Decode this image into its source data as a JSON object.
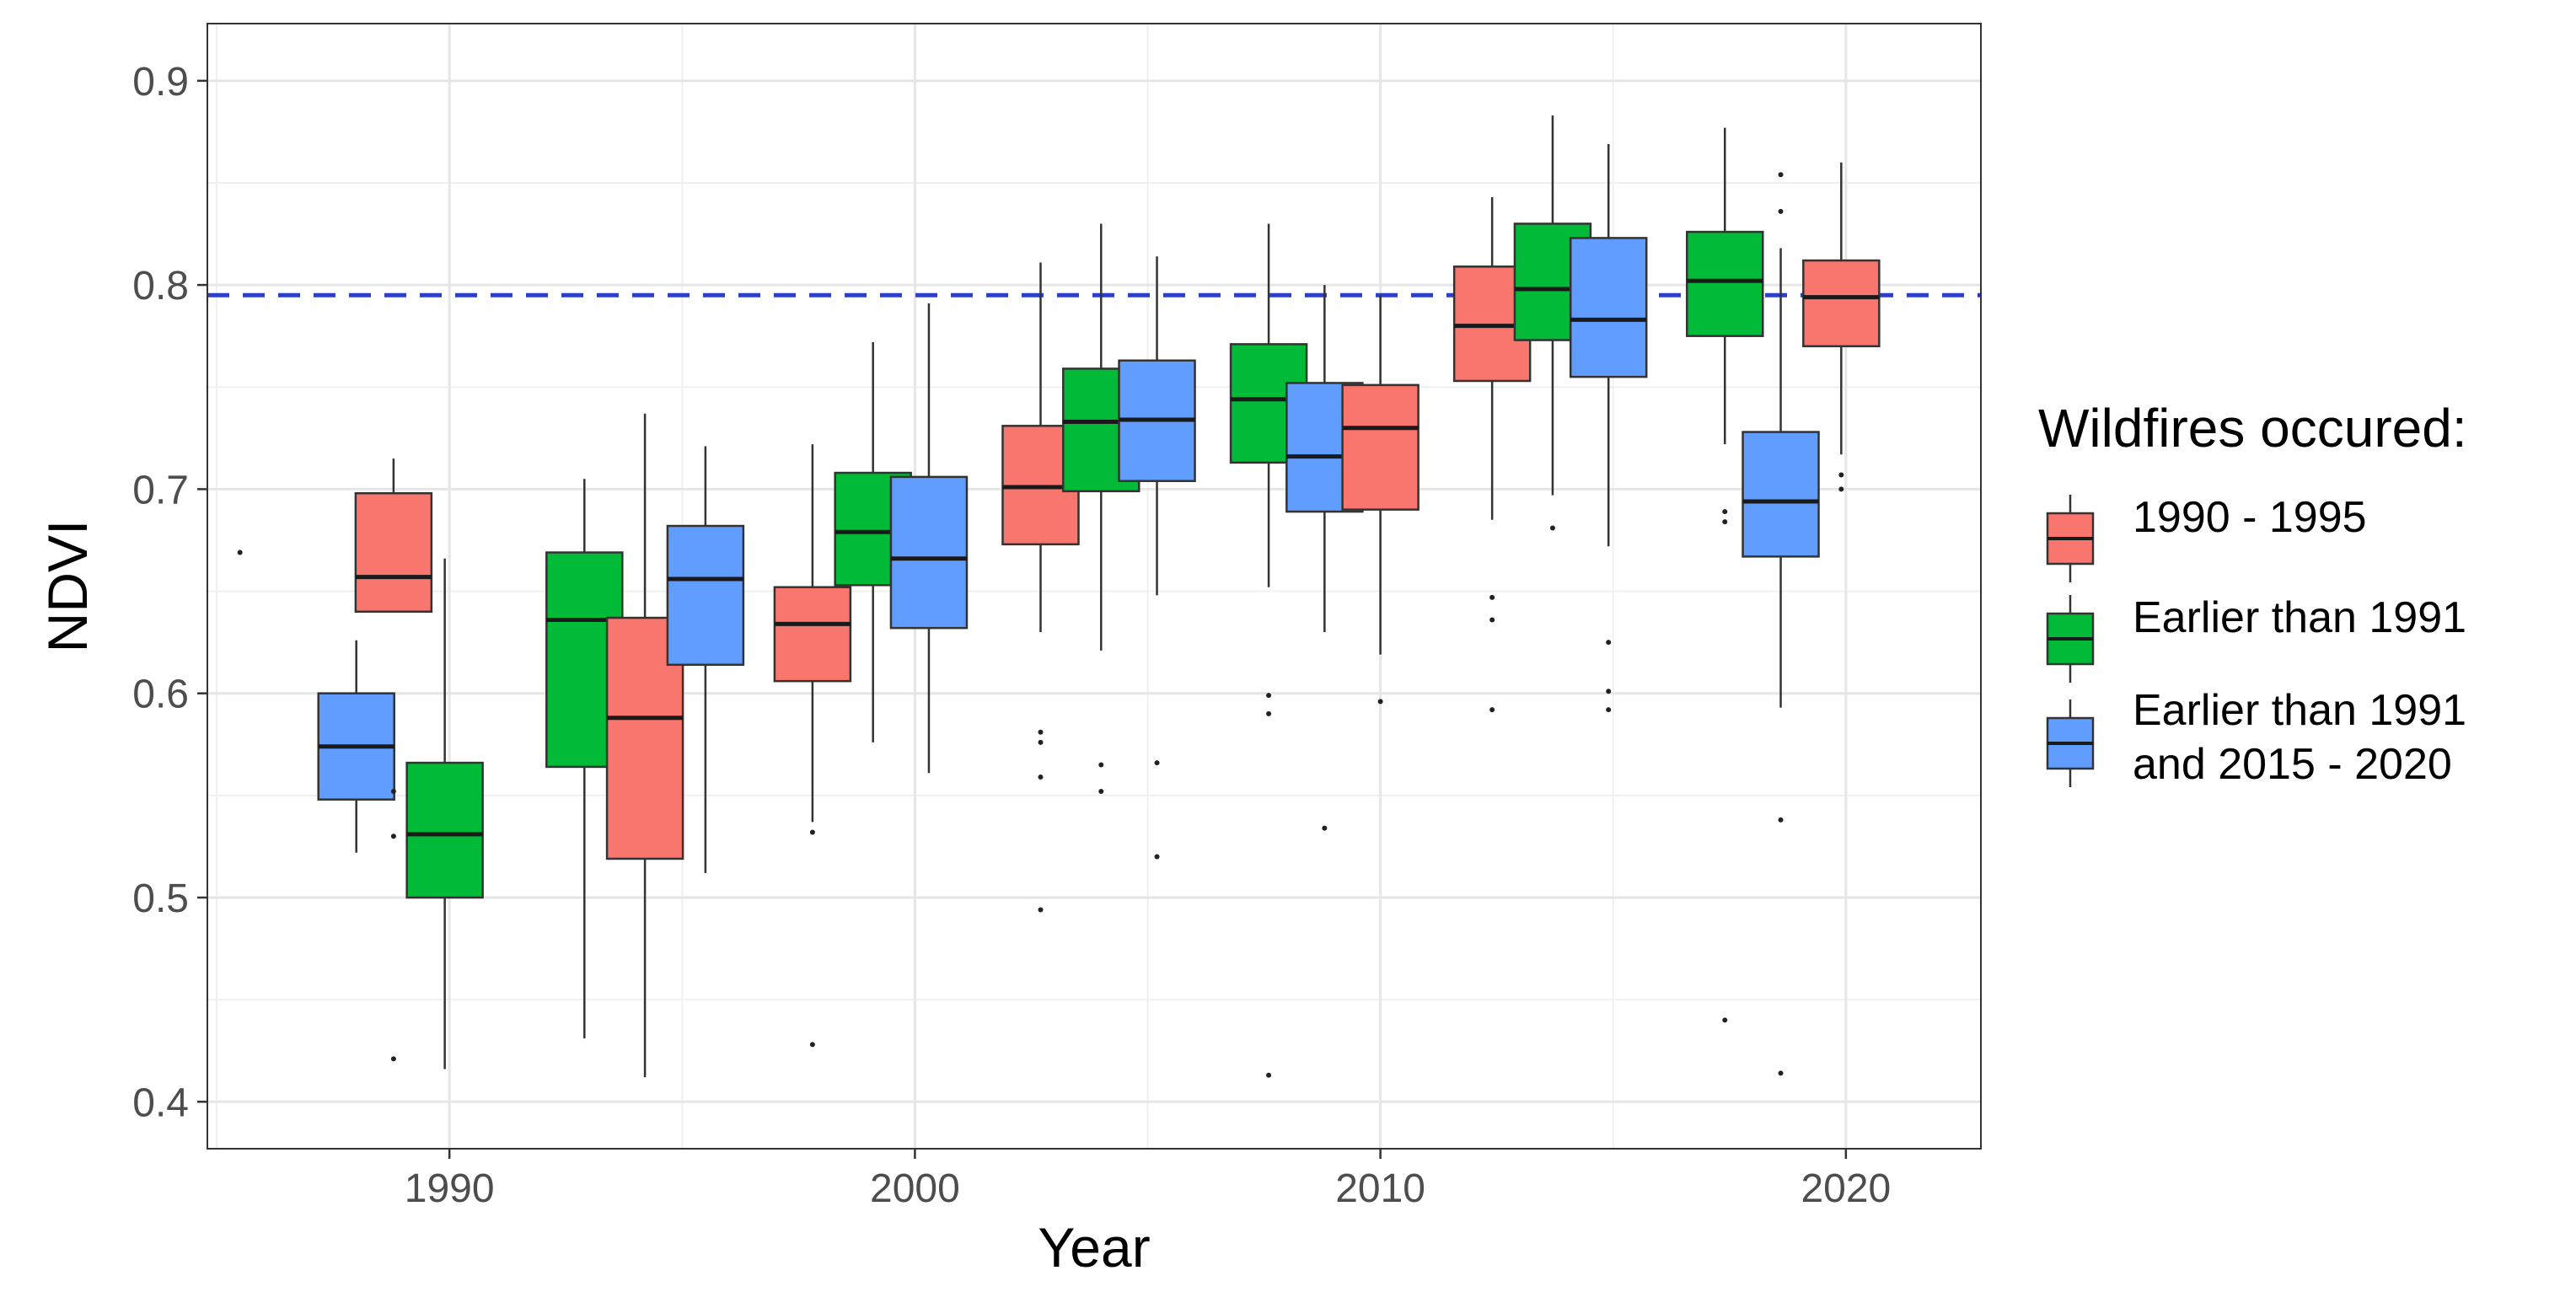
{
  "chart_data": {
    "type": "boxplot",
    "xlabel": "Year",
    "ylabel": "NDVI",
    "xlim": [
      1984.8,
      2022.9
    ],
    "ylim": [
      0.377,
      0.928
    ],
    "x_ticks": [
      1990,
      2000,
      2010,
      2020
    ],
    "y_ticks": [
      0.4,
      0.5,
      0.6,
      0.7,
      0.8,
      0.9
    ],
    "x_tick_labels": [
      "1990",
      "2000",
      "2010",
      "2020"
    ],
    "y_tick_labels": [
      "0.4",
      "0.5",
      "0.6",
      "0.7",
      "0.8",
      "0.9"
    ],
    "grid": true,
    "reference_line": {
      "y": 0.795,
      "color": "#2b3fc8",
      "style": "dashed"
    },
    "legend": {
      "title": "Wildfires occured:",
      "position": "right",
      "entries": [
        {
          "label_lines": [
            "1990 - 1995"
          ],
          "color": "#f8766d"
        },
        {
          "label_lines": [
            "Earlier than 1991"
          ],
          "color": "#00ba38"
        },
        {
          "label_lines": [
            "Earlier than 1991",
            "and 2015 - 2020"
          ],
          "color": "#619cff"
        }
      ]
    },
    "series": [
      {
        "name": "1990 - 1995",
        "color": "#f8766d"
      },
      {
        "name": "Earlier than 1991",
        "color": "#00ba38"
      },
      {
        "name": "Earlier than 1991 and 2015 - 2020",
        "color": "#619cff"
      }
    ],
    "boxes": [
      {
        "series": 2,
        "x": 1988.0,
        "low": 0.522,
        "q1": 0.548,
        "median": 0.574,
        "q3": 0.6,
        "high": 0.626,
        "outliers": []
      },
      {
        "series": 0,
        "x": 1988.8,
        "low": 0.64,
        "q1": 0.64,
        "median": 0.657,
        "q3": 0.698,
        "high": 0.715,
        "outliers": [
          0.552,
          0.53,
          0.421
        ]
      },
      {
        "series": 1,
        "x": 1989.9,
        "low": 0.416,
        "q1": 0.5,
        "median": 0.531,
        "q3": 0.566,
        "high": 0.666,
        "outliers": []
      },
      {
        "series": 1,
        "x": 1992.9,
        "low": 0.431,
        "q1": 0.564,
        "median": 0.636,
        "q3": 0.669,
        "high": 0.705,
        "outliers": []
      },
      {
        "series": 0,
        "x": 1994.2,
        "low": 0.412,
        "q1": 0.519,
        "median": 0.588,
        "q3": 0.637,
        "high": 0.737,
        "outliers": []
      },
      {
        "series": 2,
        "x": 1995.5,
        "low": 0.512,
        "q1": 0.614,
        "median": 0.656,
        "q3": 0.682,
        "high": 0.721,
        "outliers": []
      },
      {
        "series": 0,
        "x": 1997.8,
        "low": 0.537,
        "q1": 0.606,
        "median": 0.634,
        "q3": 0.652,
        "high": 0.722,
        "outliers": [
          0.532,
          0.428
        ]
      },
      {
        "series": 1,
        "x": 1999.1,
        "low": 0.576,
        "q1": 0.653,
        "median": 0.679,
        "q3": 0.708,
        "high": 0.772,
        "outliers": []
      },
      {
        "series": 2,
        "x": 2000.3,
        "low": 0.561,
        "q1": 0.632,
        "median": 0.666,
        "q3": 0.706,
        "high": 0.791,
        "outliers": []
      },
      {
        "series": 0,
        "x": 2002.7,
        "low": 0.63,
        "q1": 0.673,
        "median": 0.701,
        "q3": 0.731,
        "high": 0.811,
        "outliers": [
          0.581,
          0.576,
          0.559,
          0.494
        ]
      },
      {
        "series": 1,
        "x": 2004.0,
        "low": 0.621,
        "q1": 0.699,
        "median": 0.733,
        "q3": 0.759,
        "high": 0.83,
        "outliers": [
          0.565,
          0.552
        ]
      },
      {
        "series": 2,
        "x": 2005.2,
        "low": 0.648,
        "q1": 0.704,
        "median": 0.734,
        "q3": 0.763,
        "high": 0.814,
        "outliers": [
          0.566,
          0.52
        ]
      },
      {
        "series": 1,
        "x": 2007.6,
        "low": 0.652,
        "q1": 0.713,
        "median": 0.744,
        "q3": 0.771,
        "high": 0.83,
        "outliers": [
          0.599,
          0.59,
          0.413
        ]
      },
      {
        "series": 2,
        "x": 2008.8,
        "low": 0.63,
        "q1": 0.689,
        "median": 0.716,
        "q3": 0.752,
        "high": 0.8,
        "outliers": [
          0.534
        ]
      },
      {
        "series": 0,
        "x": 2010.0,
        "low": 0.619,
        "q1": 0.69,
        "median": 0.73,
        "q3": 0.751,
        "high": 0.795,
        "outliers": [
          0.596
        ]
      },
      {
        "series": 0,
        "x": 2012.4,
        "low": 0.685,
        "q1": 0.753,
        "median": 0.78,
        "q3": 0.809,
        "high": 0.843,
        "outliers": [
          0.647,
          0.636,
          0.592
        ]
      },
      {
        "series": 1,
        "x": 2013.7,
        "low": 0.697,
        "q1": 0.773,
        "median": 0.798,
        "q3": 0.83,
        "high": 0.883,
        "outliers": [
          0.681
        ]
      },
      {
        "series": 2,
        "x": 2014.9,
        "low": 0.672,
        "q1": 0.755,
        "median": 0.783,
        "q3": 0.823,
        "high": 0.869,
        "outliers": [
          0.625,
          0.601,
          0.592
        ]
      },
      {
        "series": 1,
        "x": 2017.4,
        "low": 0.722,
        "q1": 0.775,
        "median": 0.802,
        "q3": 0.826,
        "high": 0.877,
        "outliers": [
          0.689,
          0.684,
          0.44
        ]
      },
      {
        "series": 2,
        "x": 2018.6,
        "low": 0.593,
        "q1": 0.667,
        "median": 0.694,
        "q3": 0.728,
        "high": 0.818,
        "outliers": [
          0.854,
          0.836,
          0.538,
          0.414
        ]
      },
      {
        "series": 0,
        "x": 2019.9,
        "low": 0.717,
        "q1": 0.77,
        "median": 0.794,
        "q3": 0.812,
        "high": 0.86,
        "outliers": [
          0.707,
          0.7
        ]
      }
    ],
    "extra_points": [
      {
        "x": 1985.5,
        "y": 0.669
      }
    ]
  }
}
